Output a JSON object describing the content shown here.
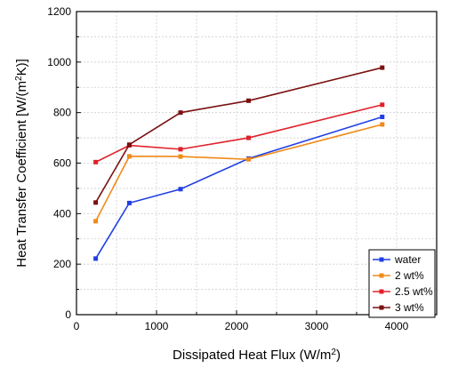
{
  "chart_data": {
    "type": "line",
    "xlabel": "Dissipated Heat Flux (W/m",
    "xlabel_sup": "2",
    "xlabel_end": ")",
    "ylabel": "Heat Transfer Coefficient [W/(m",
    "ylabel_sup": "2",
    "ylabel_end": "K)]",
    "xlim": [
      0,
      4500
    ],
    "ylim": [
      0,
      1200
    ],
    "xticks": [
      0,
      1000,
      2000,
      3000,
      4000
    ],
    "yticks": [
      0,
      200,
      400,
      600,
      800,
      1000,
      1200
    ],
    "grid": true,
    "legend_position": "bottom-right",
    "series": [
      {
        "name": "water",
        "color": "#1f3fe6",
        "x": [
          240,
          660,
          1300,
          2150,
          3820
        ],
        "y": [
          222,
          442,
          497,
          618,
          783
        ]
      },
      {
        "name": "2 wt%",
        "color": "#f08a1a",
        "x": [
          240,
          660,
          1300,
          2150,
          3820
        ],
        "y": [
          370,
          627,
          626,
          615,
          753
        ]
      },
      {
        "name": "2.5 wt%",
        "color": "#e0202a",
        "x": [
          240,
          660,
          1300,
          2150,
          3820
        ],
        "y": [
          604,
          670,
          655,
          700,
          831
        ]
      },
      {
        "name": "3 wt%",
        "color": "#7a1010",
        "x": [
          240,
          660,
          1300,
          2150,
          3820
        ],
        "y": [
          444,
          673,
          800,
          847,
          978
        ]
      }
    ]
  }
}
